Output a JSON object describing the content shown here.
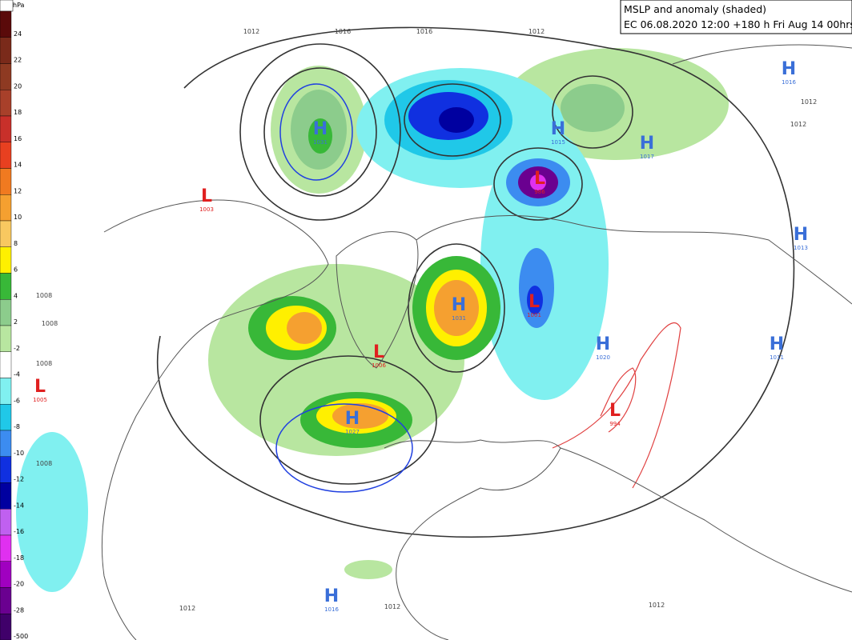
{
  "header": {
    "title": "MSLP and anomaly (shaded)",
    "subtitle": "EC 06.08.2020 12:00 +180 h Fri Aug 14 00hrs"
  },
  "legend": {
    "unit": "hPa",
    "labels": [
      24,
      22,
      20,
      18,
      16,
      14,
      12,
      10,
      8,
      6,
      4,
      2,
      -2,
      -4,
      -6,
      -8,
      -10,
      -12,
      -14,
      -16,
      -18,
      -20,
      -28,
      -500
    ],
    "colors": [
      "#5a0a0a",
      "#7a2a1a",
      "#8e3a22",
      "#a8402a",
      "#c8302a",
      "#e84020",
      "#f07a20",
      "#f5a030",
      "#f8c860",
      "#fff000",
      "#38b838",
      "#8ccc8c",
      "#b8e6a0",
      "#ffffff",
      "#80f0f0",
      "#20c8e8",
      "#3c8cf0",
      "#1030e0",
      "#0000a0",
      "#c060f0",
      "#e030f0",
      "#a000c0",
      "#6a0090",
      "#40006a"
    ]
  },
  "centers": [
    {
      "letter": "H",
      "value": "1031"
    },
    {
      "letter": "L",
      "value": "1003"
    },
    {
      "letter": "H",
      "value": "1015"
    },
    {
      "letter": "H",
      "value": "1016"
    },
    {
      "letter": "H",
      "value": "1017"
    },
    {
      "letter": "L",
      "value": "986"
    },
    {
      "letter": "H",
      "value": "1013"
    },
    {
      "letter": "L",
      "value": "1001"
    },
    {
      "letter": "H",
      "value": "1031"
    },
    {
      "letter": "L",
      "value": "1006"
    },
    {
      "letter": "H",
      "value": "1020"
    },
    {
      "letter": "H",
      "value": "1011"
    },
    {
      "letter": "L",
      "value": "1005"
    },
    {
      "letter": "H",
      "value": "1027"
    },
    {
      "letter": "L",
      "value": "994"
    },
    {
      "letter": "H",
      "value": "1016"
    }
  ],
  "isobar_labels": [
    "1012",
    "1016",
    "1016",
    "1012",
    "1012",
    "1012",
    "1008",
    "1008",
    "1008",
    "1008",
    "1012",
    "1012",
    "1012"
  ]
}
